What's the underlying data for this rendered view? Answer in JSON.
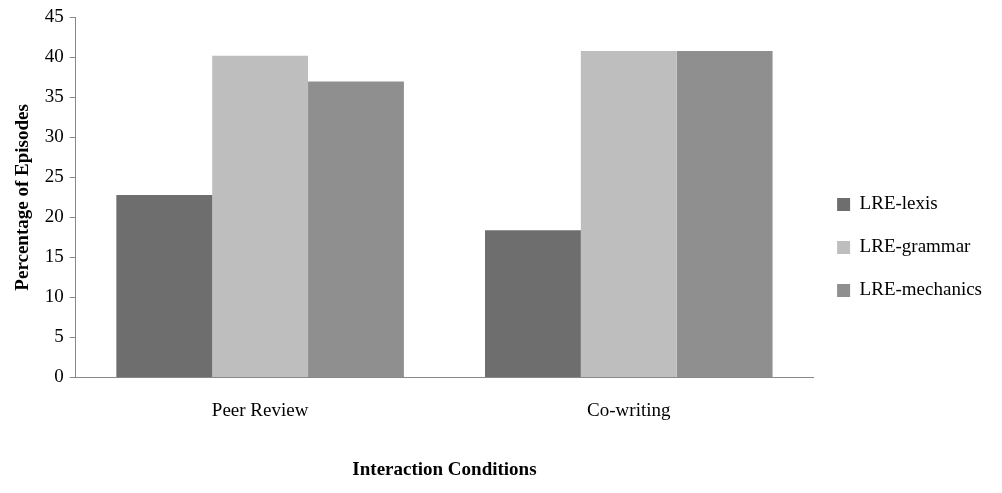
{
  "chart_data": {
    "type": "bar",
    "xlabel": "Interaction Conditions",
    "ylabel": "Percentage of Episodes",
    "categories": [
      "Peer Review",
      "Co-writing"
    ],
    "series": [
      {
        "name": "LRE-lexis",
        "color": "#6e6e6e",
        "values": [
          22.8,
          18.4
        ]
      },
      {
        "name": "LRE-grammar",
        "color": "#bebebe",
        "values": [
          40.2,
          40.8
        ]
      },
      {
        "name": "LRE-mechanics",
        "color": "#8f8f8f",
        "values": [
          37,
          40.8
        ]
      }
    ],
    "ylim": [
      0,
      45
    ],
    "yticks": [
      0,
      5,
      10,
      15,
      20,
      25,
      30,
      35,
      40,
      45
    ],
    "grid": false,
    "legend": "right"
  }
}
